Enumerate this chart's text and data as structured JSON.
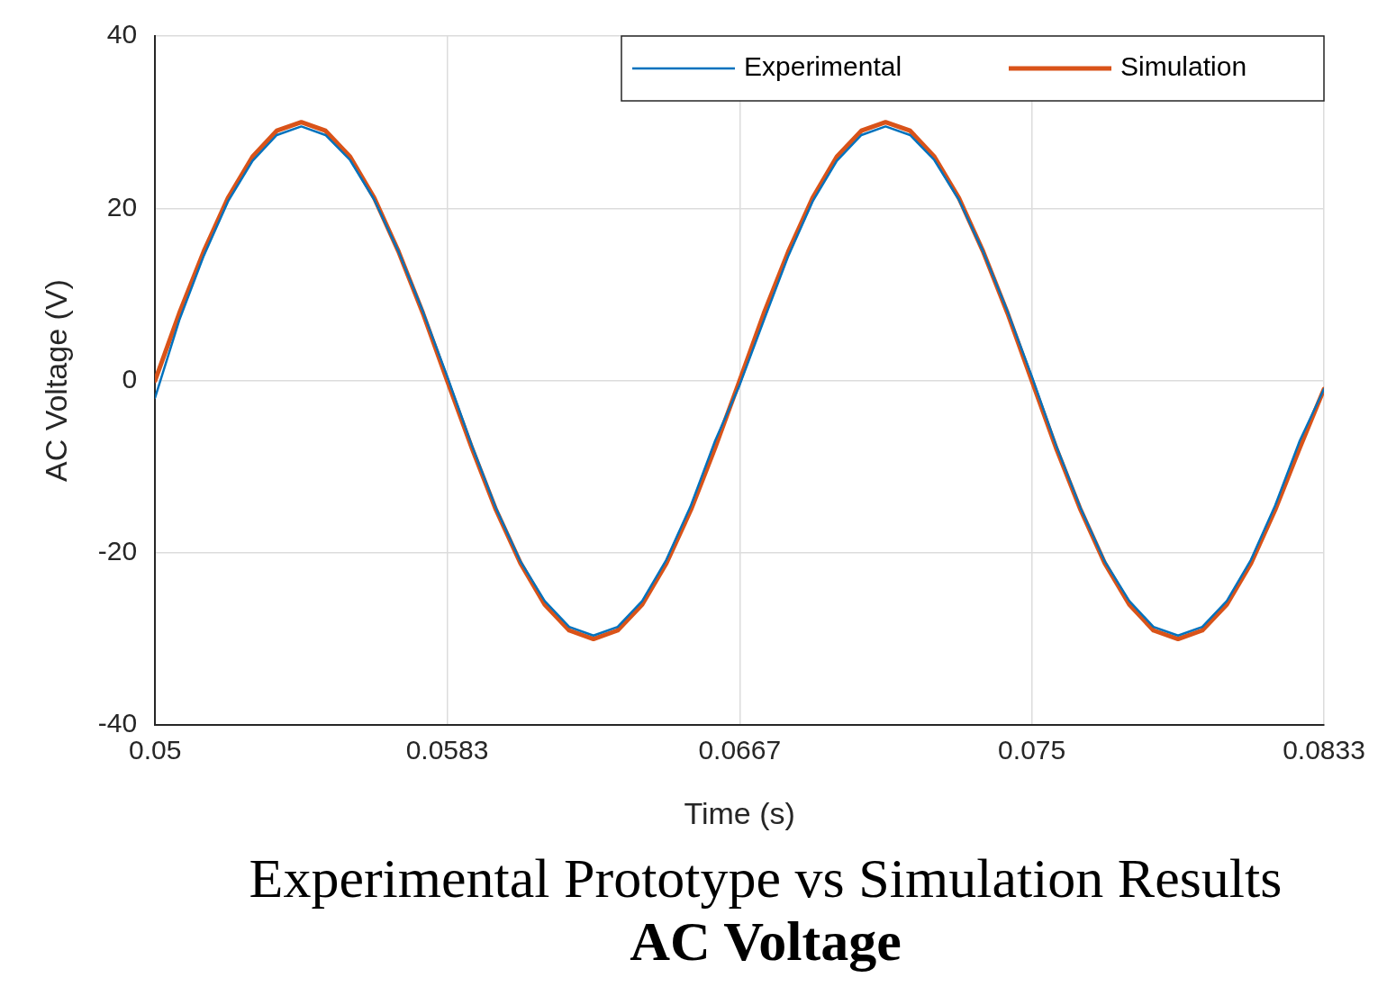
{
  "chart_data": {
    "type": "line",
    "xlabel": "Time (s)",
    "ylabel": "AC Voltage (V)",
    "annotations": [
      "Experimental Prototype vs Simulation Results",
      "AC Voltage"
    ],
    "x": [
      0.05,
      0.05069,
      0.05139,
      0.05208,
      0.05278,
      0.05347,
      0.05417,
      0.05486,
      0.05556,
      0.05625,
      0.05694,
      0.05764,
      0.05833,
      0.05903,
      0.05972,
      0.06042,
      0.06111,
      0.06181,
      0.0625,
      0.06319,
      0.06389,
      0.06458,
      0.06528,
      0.06597,
      0.06667,
      0.06736,
      0.06806,
      0.06875,
      0.06944,
      0.07014,
      0.07083,
      0.07153,
      0.07222,
      0.07292,
      0.07361,
      0.07431,
      0.075,
      0.07569,
      0.07639,
      0.07708,
      0.07778,
      0.07847,
      0.07917,
      0.07986,
      0.08056,
      0.08125,
      0.08194,
      0.08264,
      0.08333
    ],
    "series": [
      {
        "name": "Experimental",
        "color": "#0072bd",
        "values": [
          -2,
          7,
          14.5,
          20.8,
          25.5,
          28.5,
          29.5,
          28.5,
          25.6,
          21,
          15,
          8,
          0.5,
          -7.5,
          -14.8,
          -21,
          -25.6,
          -28.6,
          -29.6,
          -28.6,
          -25.6,
          -20.8,
          -14.5,
          -7,
          -0.5,
          7,
          14.5,
          20.8,
          25.5,
          28.5,
          29.5,
          28.5,
          25.6,
          21,
          15,
          8,
          0.5,
          -7.5,
          -14.8,
          -21,
          -25.6,
          -28.6,
          -29.6,
          -28.6,
          -25.6,
          -20.8,
          -14.5,
          -7,
          -1
        ]
      },
      {
        "name": "Simulation",
        "color": "#d95319",
        "values": [
          0,
          7.8,
          15,
          21.2,
          26,
          29,
          30,
          29,
          26,
          21.2,
          15,
          7.8,
          0,
          -7.8,
          -15,
          -21.2,
          -26,
          -29,
          -30,
          -29,
          -26,
          -21.2,
          -15,
          -7.8,
          0,
          7.8,
          15,
          21.2,
          26,
          29,
          30,
          29,
          26,
          21.2,
          15,
          7.8,
          0,
          -7.8,
          -15,
          -21.2,
          -26,
          -29,
          -30,
          -29,
          -26,
          -21.2,
          -15,
          -7.8,
          -1
        ]
      }
    ],
    "xlim": [
      0.05,
      0.08333
    ],
    "xticks": [
      0.05,
      {
        "value": 0.05833,
        "label": "0.0583"
      },
      {
        "value": 0.06667,
        "label": "0.0667"
      },
      0.075,
      {
        "value": 0.08333,
        "label": "0.0833"
      }
    ],
    "ylim": [
      -40,
      40
    ],
    "yticks": [
      -40,
      -20,
      0,
      20,
      40
    ],
    "grid": true,
    "legend": "top right",
    "marker": "none",
    "line_style": "solid"
  }
}
